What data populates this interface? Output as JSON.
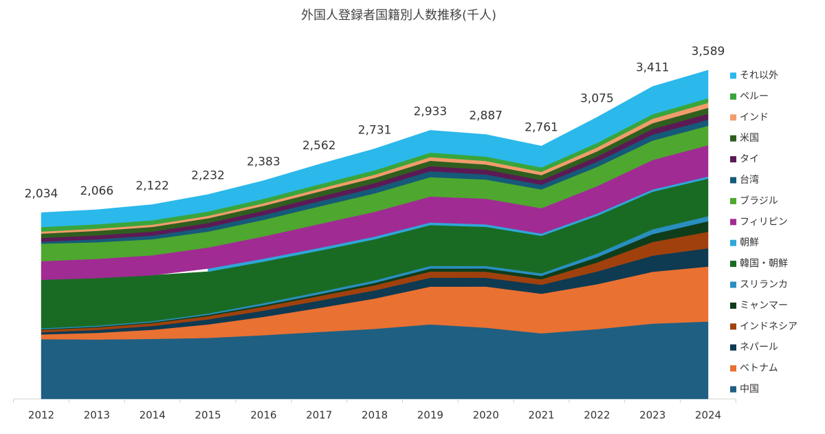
{
  "chart_data": {
    "type": "stacked-area",
    "title": "外国人登録者国籍別人数推移(千人)",
    "categories": [
      "2012",
      "2013",
      "2014",
      "2015",
      "2016",
      "2017",
      "2018",
      "2019",
      "2020",
      "2021",
      "2022",
      "2023",
      "2024"
    ],
    "totals": {
      "values": [
        2034,
        2066,
        2122,
        2232,
        2383,
        2562,
        2731,
        2933,
        2887,
        2761,
        3075,
        3411,
        3589
      ],
      "value_labels": [
        "2,034",
        "2,066",
        "2,122",
        "2,232",
        "2,383",
        "2,562",
        "2,731",
        "2,933",
        "2,887",
        "2,761",
        "3,075",
        "3,411",
        "3,589"
      ]
    },
    "series": [
      {
        "name": "中国",
        "color": "#1f5f82",
        "values": [
          652,
          649,
          655,
          666,
          696,
          731,
          765,
          814,
          778,
          716,
          762,
          822,
          845
        ]
      },
      {
        "name": "ベトナム",
        "color": "#e97132",
        "values": [
          52,
          72,
          100,
          147,
          200,
          262,
          331,
          412,
          449,
          432,
          490,
          566,
          600
        ]
      },
      {
        "name": "ネパール",
        "color": "#0e3a52",
        "values": [
          24,
          32,
          42,
          55,
          68,
          80,
          89,
          97,
          96,
          98,
          139,
          176,
          200
        ]
      },
      {
        "name": "インドネシア",
        "color": "#a0410d",
        "values": [
          25,
          27,
          30,
          36,
          43,
          50,
          56,
          67,
          66,
          60,
          98,
          149,
          180
        ]
      },
      {
        "name": "ミャンマー",
        "color": "#0f3d1a",
        "values": [
          8,
          9,
          10,
          14,
          17,
          20,
          26,
          33,
          35,
          37,
          57,
          86,
          115
        ]
      },
      {
        "name": "スリランカ",
        "color": "#2a8ebf",
        "values": [
          10,
          11,
          12,
          14,
          22,
          25,
          27,
          29,
          28,
          28,
          41,
          53,
          55
        ]
      },
      {
        "name": "韓国・朝鮮",
        "color": "#196b24",
        "values": [
          530,
          519,
          501,
          457,
          453,
          450,
          449,
          446,
          427,
          409,
          411,
          410,
          410
        ]
      },
      {
        "name": "朝鮮",
        "color": "#2fa7d8",
        "values": [
          null,
          null,
          null,
          34,
          32,
          30,
          29,
          28,
          27,
          25,
          25,
          24,
          23
        ]
      },
      {
        "name": "フィリピン",
        "color": "#a02b93",
        "values": [
          203,
          210,
          218,
          230,
          243,
          261,
          271,
          283,
          280,
          277,
          299,
          322,
          342
        ]
      },
      {
        "name": "ブラジル",
        "color": "#4ea72e",
        "values": [
          191,
          181,
          175,
          173,
          181,
          192,
          201,
          212,
          209,
          205,
          210,
          212,
          212
        ]
      },
      {
        "name": "台湾",
        "color": "#155a78",
        "values": [
          22,
          33,
          40,
          48,
          52,
          56,
          60,
          65,
          55,
          51,
          57,
          65,
          65
        ]
      },
      {
        "name": "タイ",
        "color": "#5c1a55",
        "values": [
          40,
          42,
          44,
          46,
          48,
          50,
          52,
          55,
          54,
          51,
          56,
          62,
          66
        ]
      },
      {
        "name": "米国",
        "color": "#2f5e1f",
        "values": [
          48,
          50,
          51,
          52,
          53,
          56,
          57,
          59,
          55,
          54,
          57,
          63,
          65
        ]
      },
      {
        "name": "インド",
        "color": "#f29c6b",
        "values": [
          22,
          23,
          24,
          26,
          28,
          31,
          35,
          40,
          39,
          36,
          43,
          48,
          54
        ]
      },
      {
        "name": "ペルー",
        "color": "#3aa53a",
        "values": [
          49,
          48,
          48,
          48,
          48,
          48,
          48,
          49,
          48,
          48,
          49,
          49,
          50
        ]
      },
      {
        "name": "それ以外",
        "color": "#2bb8ea",
        "values": [
          158,
          160,
          172,
          186,
          199,
          220,
          235,
          244,
          241,
          234,
          281,
          304,
          307
        ]
      }
    ]
  }
}
